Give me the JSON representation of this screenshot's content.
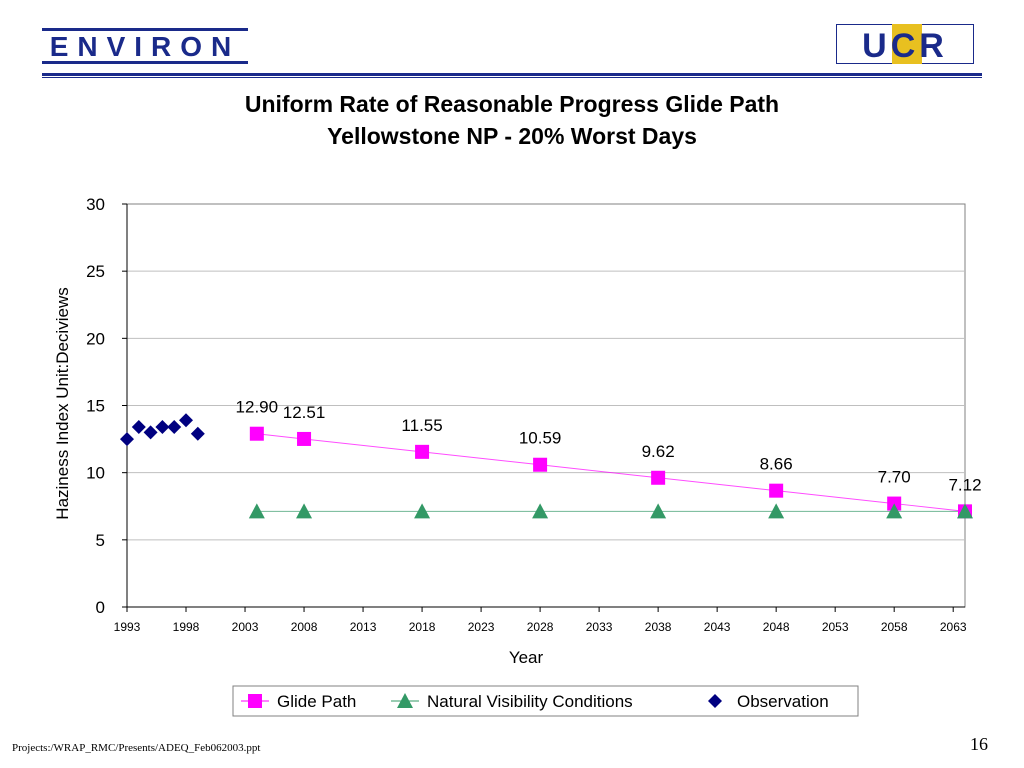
{
  "branding": {
    "left_logo": "ENVIRON",
    "right_logo": "UCR",
    "logo_color": "#1a2a8a",
    "ucr_gold": "#e8c020"
  },
  "chart_data": {
    "type": "scatter",
    "title": "Uniform Rate of Reasonable Progress Glide Path",
    "subtitle": "Yellowstone NP - 20% Worst Days",
    "xlabel": "Year",
    "ylabel": "Haziness Index Unit:Deciviews",
    "xlim": [
      1993,
      2064
    ],
    "ylim": [
      0,
      30
    ],
    "x_ticks": [
      1993,
      1998,
      2003,
      2008,
      2013,
      2018,
      2023,
      2028,
      2033,
      2038,
      2043,
      2048,
      2053,
      2058,
      2063
    ],
    "y_ticks": [
      0,
      5,
      10,
      15,
      20,
      25,
      30
    ],
    "grid": "horizontal",
    "legend_position": "bottom",
    "series": [
      {
        "name": "Glide Path",
        "marker": "square",
        "color": "#ff00ff",
        "line": true,
        "points": [
          {
            "x": 2004,
            "y": 12.9,
            "label": "12.90"
          },
          {
            "x": 2008,
            "y": 12.51,
            "label": "12.51"
          },
          {
            "x": 2018,
            "y": 11.55,
            "label": "11.55"
          },
          {
            "x": 2028,
            "y": 10.59,
            "label": "10.59"
          },
          {
            "x": 2038,
            "y": 9.62,
            "label": "9.62"
          },
          {
            "x": 2048,
            "y": 8.66,
            "label": "8.66"
          },
          {
            "x": 2058,
            "y": 7.7,
            "label": "7.70"
          },
          {
            "x": 2064,
            "y": 7.12,
            "label": "7.12"
          }
        ]
      },
      {
        "name": "Natural Visibility Conditions",
        "marker": "triangle",
        "color": "#339966",
        "line": true,
        "points": [
          {
            "x": 2004,
            "y": 7.12
          },
          {
            "x": 2008,
            "y": 7.12
          },
          {
            "x": 2018,
            "y": 7.12
          },
          {
            "x": 2028,
            "y": 7.12
          },
          {
            "x": 2038,
            "y": 7.12
          },
          {
            "x": 2048,
            "y": 7.12
          },
          {
            "x": 2058,
            "y": 7.12
          },
          {
            "x": 2064,
            "y": 7.12
          }
        ]
      },
      {
        "name": "Observation",
        "marker": "diamond",
        "color": "#000080",
        "line": false,
        "points": [
          {
            "x": 1993,
            "y": 12.5
          },
          {
            "x": 1994,
            "y": 13.4
          },
          {
            "x": 1995,
            "y": 13.0
          },
          {
            "x": 1996,
            "y": 13.4
          },
          {
            "x": 1997,
            "y": 13.4
          },
          {
            "x": 1998,
            "y": 13.9
          },
          {
            "x": 1999,
            "y": 12.9
          }
        ]
      }
    ]
  },
  "footer": {
    "path": "Projects:/WRAP_RMC/Presents/ADEQ_Feb062003.ppt",
    "page_number": "16"
  }
}
